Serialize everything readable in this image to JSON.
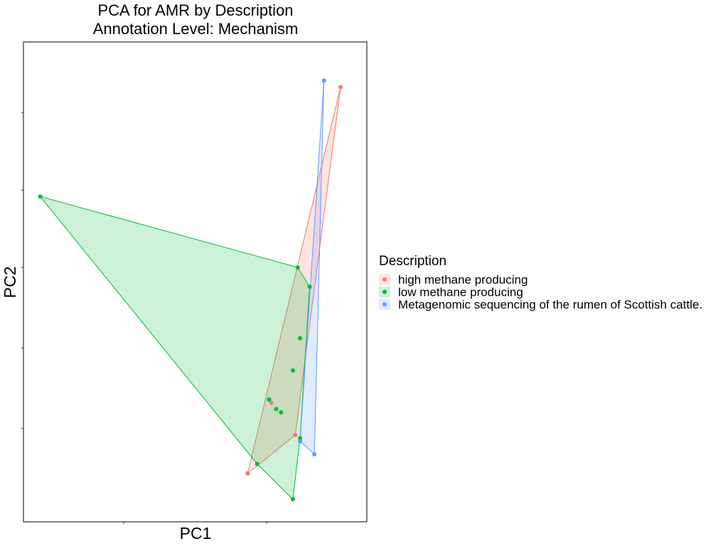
{
  "chart_data": {
    "type": "scatter",
    "title_line1": "PCA for AMR by Description",
    "title_line2": "Annotation Level: Mechanism",
    "xlabel": "PC1",
    "ylabel": "PC2",
    "xlim": [
      -6.1,
      1.1
    ],
    "ylim": [
      -3.95,
      3.5
    ],
    "x_ticks_shown": false,
    "y_ticks_shown": false,
    "grid": false,
    "convex_hulls": true,
    "legend_title": "Description",
    "legend_position": "right",
    "series": [
      {
        "name": "high methane producing",
        "color": "#F8766D",
        "points": [
          [
            0.55,
            2.8
          ],
          [
            -0.9,
            -2.1
          ],
          [
            -1.4,
            -3.2
          ],
          [
            -0.4,
            -2.6
          ]
        ]
      },
      {
        "name": "low methane producing",
        "color": "#00BA38",
        "points": [
          [
            -5.75,
            1.1
          ],
          [
            -0.35,
            0.0
          ],
          [
            -0.1,
            -0.3
          ],
          [
            -0.3,
            -1.1
          ],
          [
            -0.45,
            -1.6
          ],
          [
            -0.95,
            -2.05
          ],
          [
            -0.8,
            -2.2
          ],
          [
            -0.7,
            -2.25
          ],
          [
            -1.2,
            -3.05
          ],
          [
            -0.45,
            -3.6
          ],
          [
            -0.3,
            -2.65
          ]
        ]
      },
      {
        "name": "Metagenomic sequencing of the rumen of Scottish cattle.",
        "color": "#619CFF",
        "points": [
          [
            0.2,
            2.9
          ],
          [
            0.0,
            -2.9
          ],
          [
            -0.3,
            -2.7
          ]
        ]
      }
    ]
  }
}
